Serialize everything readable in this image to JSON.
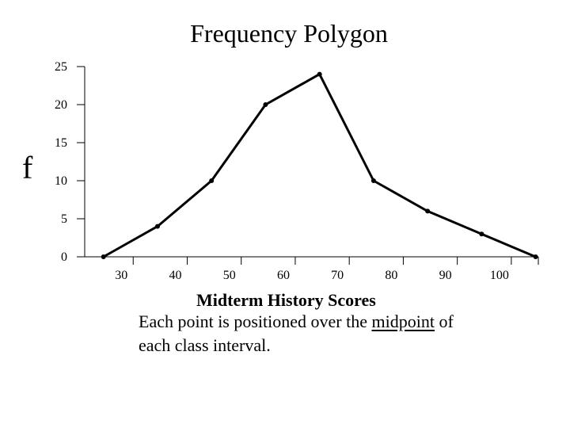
{
  "chart_data": {
    "type": "line",
    "title": "Frequency Polygon",
    "ylabel": "f",
    "xlabel": "Midterm History Scores",
    "xlim": [
      20,
      105
    ],
    "ylim": [
      0,
      25
    ],
    "x_ticks": [
      30,
      40,
      50,
      60,
      70,
      80,
      90,
      100
    ],
    "y_ticks": [
      0,
      5,
      10,
      15,
      20,
      25
    ],
    "grid": false,
    "series": [
      {
        "x": [
          24.5,
          34.5,
          44.5,
          54.5,
          64.5,
          74.5,
          84.5,
          94.5,
          104.5
        ],
        "y": [
          0,
          4,
          10,
          20,
          24,
          10,
          6,
          3,
          0
        ]
      }
    ]
  },
  "caption": {
    "part1": "Each point is positioned over the ",
    "emphasis": "midpoint",
    "part2": " of",
    "line2": "each class interval."
  }
}
